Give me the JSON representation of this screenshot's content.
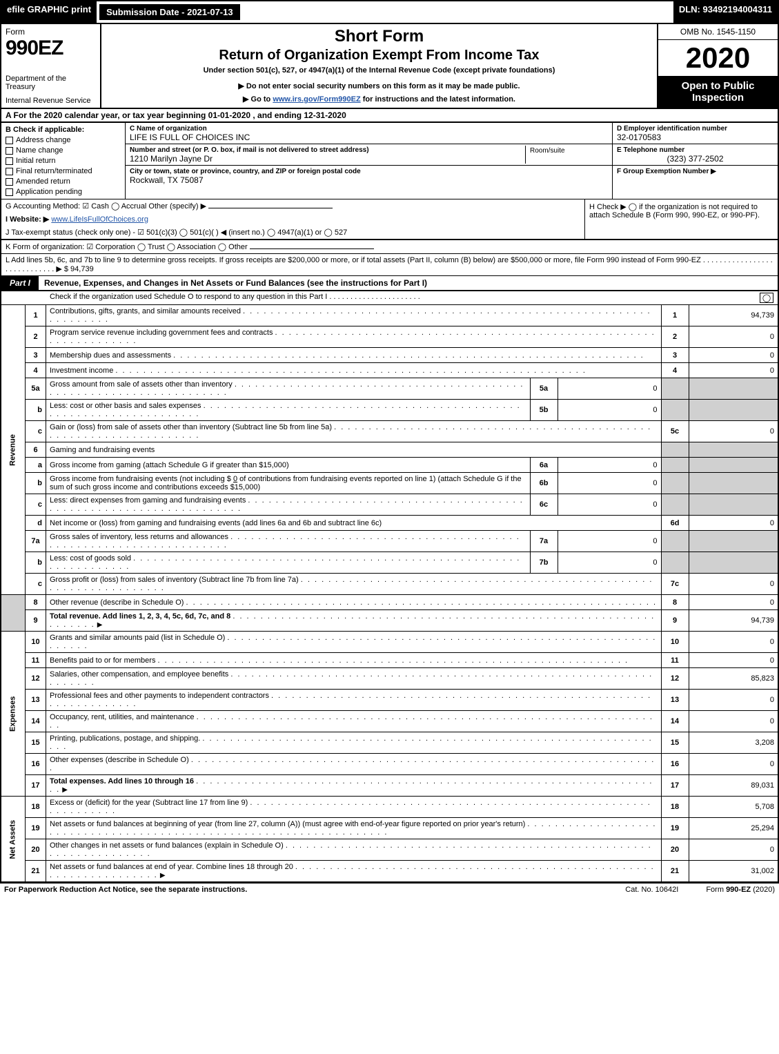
{
  "topbar": {
    "efile": "efile GRAPHIC print",
    "submission": "Submission Date - 2021-07-13",
    "dln": "DLN: 93492194004311"
  },
  "header": {
    "form": "Form",
    "form_no": "990EZ",
    "dept1": "Department of the Treasury",
    "dept2": "Internal Revenue Service",
    "short_form": "Short Form",
    "return_title": "Return of Organization Exempt From Income Tax",
    "under": "Under section 501(c), 527, or 4947(a)(1) of the Internal Revenue Code (except private foundations)",
    "donot": "▶ Do not enter social security numbers on this form as it may be made public.",
    "goto_pre": "▶ Go to ",
    "goto_link": "www.irs.gov/Form990EZ",
    "goto_post": " for instructions and the latest information.",
    "omb": "OMB No. 1545-1150",
    "year": "2020",
    "open": "Open to Public Inspection"
  },
  "A": "A  For the 2020 calendar year, or tax year beginning 01-01-2020 , and ending 12-31-2020",
  "B": {
    "title": "B  Check if applicable:",
    "opts": [
      "Address change",
      "Name change",
      "Initial return",
      "Final return/terminated",
      "Amended return",
      "Application pending"
    ]
  },
  "C": {
    "name_lbl": "C Name of organization",
    "name": "LIFE IS FULL OF CHOICES INC",
    "addr_lbl": "Number and street (or P. O. box, if mail is not delivered to street address)",
    "addr": "1210 Marilyn Jayne Dr",
    "room_lbl": "Room/suite",
    "city_lbl": "City or town, state or province, country, and ZIP or foreign postal code",
    "city": "Rockwall, TX  75087"
  },
  "D": {
    "lbl": "D Employer identification number",
    "val": "32-0170583"
  },
  "E": {
    "lbl": "E Telephone number",
    "val": "(323) 377-2502"
  },
  "F": {
    "lbl": "F Group Exemption Number   ▶",
    "val": ""
  },
  "G": "G Accounting Method:   ☑ Cash  ◯ Accrual   Other (specify) ▶",
  "H": "H   Check ▶  ◯  if the organization is not required to attach Schedule B (Form 990, 990-EZ, or 990-PF).",
  "I_pre": "I Website: ▶",
  "I_link": "www.LifeIsFullOfChoices.org",
  "J": "J Tax-exempt status (check only one) - ☑ 501(c)(3) ◯ 501(c)(  ) ◀ (insert no.) ◯ 4947(a)(1) or ◯ 527",
  "K": "K Form of organization:   ☑ Corporation  ◯ Trust  ◯ Association  ◯ Other",
  "L": "L Add lines 5b, 6c, and 7b to line 9 to determine gross receipts. If gross receipts are $200,000 or more, or if total assets (Part II, column (B) below) are $500,000 or more, file Form 990 instead of Form 990-EZ . . . . . . . . . . . . . . . . . . . . . . . . . . . . . ▶ $ 94,739",
  "part1": {
    "tab": "Part I",
    "title": "Revenue, Expenses, and Changes in Net Assets or Fund Balances (see the instructions for Part I)",
    "sub": "Check if the organization used Schedule O to respond to any question in this Part I . . . . . . . . . . . . . . . . . . . . . .",
    "sub_box": "◯"
  },
  "side": {
    "rev": "Revenue",
    "exp": "Expenses",
    "na": "Net Assets"
  },
  "lines": {
    "l1": {
      "n": "1",
      "d": "Contributions, gifts, grants, and similar amounts received",
      "r": "1",
      "v": "94,739"
    },
    "l2": {
      "n": "2",
      "d": "Program service revenue including government fees and contracts",
      "r": "2",
      "v": "0"
    },
    "l3": {
      "n": "3",
      "d": "Membership dues and assessments",
      "r": "3",
      "v": "0"
    },
    "l4": {
      "n": "4",
      "d": "Investment income",
      "r": "4",
      "v": "0"
    },
    "l5a": {
      "n": "5a",
      "d": "Gross amount from sale of assets other than inventory",
      "sn": "5a",
      "sv": "0"
    },
    "l5b": {
      "n": "b",
      "d": "Less: cost or other basis and sales expenses",
      "sn": "5b",
      "sv": "0"
    },
    "l5c": {
      "n": "c",
      "d": "Gain or (loss) from sale of assets other than inventory (Subtract line 5b from line 5a)",
      "r": "5c",
      "v": "0"
    },
    "l6": {
      "n": "6",
      "d": "Gaming and fundraising events"
    },
    "l6a": {
      "n": "a",
      "d": "Gross income from gaming (attach Schedule G if greater than $15,000)",
      "sn": "6a",
      "sv": "0"
    },
    "l6b": {
      "n": "b",
      "d1": "Gross income from fundraising events (not including $",
      "d1amt": "0",
      "d2": " of contributions from fundraising events reported on line 1) (attach Schedule G if the sum of such gross income and contributions exceeds $15,000)",
      "sn": "6b",
      "sv": "0"
    },
    "l6c": {
      "n": "c",
      "d": "Less: direct expenses from gaming and fundraising events",
      "sn": "6c",
      "sv": "0"
    },
    "l6d": {
      "n": "d",
      "d": "Net income or (loss) from gaming and fundraising events (add lines 6a and 6b and subtract line 6c)",
      "r": "6d",
      "v": "0"
    },
    "l7a": {
      "n": "7a",
      "d": "Gross sales of inventory, less returns and allowances",
      "sn": "7a",
      "sv": "0"
    },
    "l7b": {
      "n": "b",
      "d": "Less: cost of goods sold",
      "sn": "7b",
      "sv": "0"
    },
    "l7c": {
      "n": "c",
      "d": "Gross profit or (loss) from sales of inventory (Subtract line 7b from line 7a)",
      "r": "7c",
      "v": "0"
    },
    "l8": {
      "n": "8",
      "d": "Other revenue (describe in Schedule O)",
      "r": "8",
      "v": "0"
    },
    "l9": {
      "n": "9",
      "d": "Total revenue. Add lines 1, 2, 3, 4, 5c, 6d, 7c, and 8",
      "r": "9",
      "v": "94,739",
      "arrow": "▶"
    },
    "l10": {
      "n": "10",
      "d": "Grants and similar amounts paid (list in Schedule O)",
      "r": "10",
      "v": "0"
    },
    "l11": {
      "n": "11",
      "d": "Benefits paid to or for members",
      "r": "11",
      "v": "0"
    },
    "l12": {
      "n": "12",
      "d": "Salaries, other compensation, and employee benefits",
      "r": "12",
      "v": "85,823"
    },
    "l13": {
      "n": "13",
      "d": "Professional fees and other payments to independent contractors",
      "r": "13",
      "v": "0"
    },
    "l14": {
      "n": "14",
      "d": "Occupancy, rent, utilities, and maintenance",
      "r": "14",
      "v": "0"
    },
    "l15": {
      "n": "15",
      "d": "Printing, publications, postage, and shipping.",
      "r": "15",
      "v": "3,208"
    },
    "l16": {
      "n": "16",
      "d": "Other expenses (describe in Schedule O)",
      "r": "16",
      "v": "0"
    },
    "l17": {
      "n": "17",
      "d": "Total expenses. Add lines 10 through 16",
      "r": "17",
      "v": "89,031",
      "arrow": "▶"
    },
    "l18": {
      "n": "18",
      "d": "Excess or (deficit) for the year (Subtract line 17 from line 9)",
      "r": "18",
      "v": "5,708"
    },
    "l19": {
      "n": "19",
      "d": "Net assets or fund balances at beginning of year (from line 27, column (A)) (must agree with end-of-year figure reported on prior year's return)",
      "r": "19",
      "v": "25,294"
    },
    "l20": {
      "n": "20",
      "d": "Other changes in net assets or fund balances (explain in Schedule O)",
      "r": "20",
      "v": "0"
    },
    "l21": {
      "n": "21",
      "d": "Net assets or fund balances at end of year. Combine lines 18 through 20",
      "r": "21",
      "v": "31,002",
      "arrow": "▶"
    }
  },
  "footer": {
    "l": "For Paperwork Reduction Act Notice, see the separate instructions.",
    "c": "Cat. No. 10642I",
    "r": "Form 990-EZ (2020)"
  },
  "colors": {
    "black": "#000000",
    "white": "#ffffff",
    "grey": "#d0d0d0",
    "link": "#2356a8"
  }
}
